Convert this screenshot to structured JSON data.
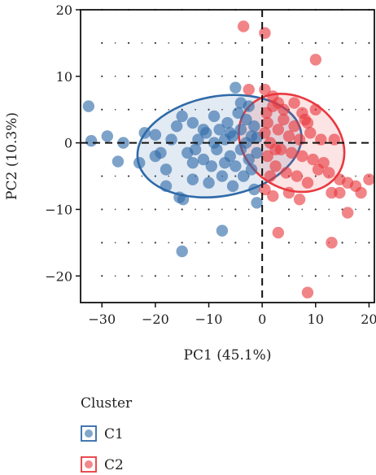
{
  "chart_data": {
    "type": "scatter",
    "xlabel": "PC1 (45.1%)",
    "ylabel": "PC2 (10.3%)",
    "xlim": [
      -34,
      21
    ],
    "ylim": [
      -24,
      20
    ],
    "x_ticks": [
      -30,
      -20,
      -10,
      0,
      10,
      20
    ],
    "y_ticks": [
      -20,
      -10,
      0,
      10,
      20
    ],
    "x_tick_labels": [
      "−30",
      "−20",
      "−10",
      "0",
      "10",
      "20"
    ],
    "y_tick_labels": [
      "−20",
      "−10",
      "0",
      "10",
      "20"
    ],
    "reference_lines": {
      "x": 0,
      "y": 0,
      "style": "dashed"
    },
    "grid": "dotted",
    "legend": {
      "title": "Cluster",
      "placement": "bottom-left",
      "entries": [
        "C1",
        "C2"
      ]
    },
    "series": [
      {
        "name": "C1",
        "color": "#2f6aa8",
        "ellipse": {
          "center": [
            -8,
            -0.5
          ],
          "semi_axes": [
            15.5,
            7.5
          ],
          "rotation_deg": 10
        },
        "points": [
          [
            -32.5,
            5.5
          ],
          [
            -32,
            0.3
          ],
          [
            -29,
            1
          ],
          [
            -27,
            -2.8
          ],
          [
            -26,
            0
          ],
          [
            -23,
            -3
          ],
          [
            -22,
            1.5
          ],
          [
            -20,
            1.2
          ],
          [
            -19,
            -1.5
          ],
          [
            -18,
            -4
          ],
          [
            -17,
            0.5
          ],
          [
            -16,
            2.5
          ],
          [
            -15.5,
            -8.2
          ],
          [
            -15,
            -16.3
          ],
          [
            -14.8,
            -8.5
          ],
          [
            -14,
            -1.5
          ],
          [
            -13,
            3
          ],
          [
            -13,
            -5.5
          ],
          [
            -12,
            0.5
          ],
          [
            -11,
            -2.5
          ],
          [
            -10.5,
            1.5
          ],
          [
            -10,
            -6
          ],
          [
            -9.5,
            -3.5
          ],
          [
            -9,
            4
          ],
          [
            -8.5,
            -1
          ],
          [
            -8,
            2
          ],
          [
            -7.5,
            -13.2
          ],
          [
            -7.5,
            -5
          ],
          [
            -7,
            0.5
          ],
          [
            -6.5,
            3
          ],
          [
            -6,
            -2
          ],
          [
            -5.5,
            -6.5
          ],
          [
            -5.5,
            1
          ],
          [
            -5,
            8.3
          ],
          [
            -5,
            -3.5
          ],
          [
            -4.5,
            4.5
          ],
          [
            -4,
            -1
          ],
          [
            -4,
            2
          ],
          [
            -3.5,
            -5
          ],
          [
            -3,
            0
          ],
          [
            -3,
            3.5
          ],
          [
            -2.5,
            -2.5
          ],
          [
            -2.5,
            5.5
          ],
          [
            -2,
            1
          ],
          [
            -2,
            -4
          ],
          [
            -1.5,
            -7
          ],
          [
            -1,
            -9
          ],
          [
            -1.5,
            2.5
          ],
          [
            -1,
            -1.5
          ],
          [
            -1,
            0.8
          ],
          [
            -18,
            -6.5
          ],
          [
            -20,
            -2
          ],
          [
            -12.5,
            -1
          ],
          [
            -9,
            0
          ],
          [
            -11,
            2
          ],
          [
            -6,
            1.5
          ],
          [
            -13,
            -3
          ],
          [
            -15,
            4
          ],
          [
            -4,
            6
          ],
          [
            -7,
            -3
          ]
        ]
      },
      {
        "name": "C2",
        "color": "#e8393e",
        "ellipse": {
          "center": [
            5.5,
            0
          ],
          "semi_axes": [
            10.5,
            6.8
          ],
          "rotation_deg": -35
        },
        "points": [
          [
            -3.5,
            17.5
          ],
          [
            0.5,
            16.5
          ],
          [
            10,
            12.5
          ],
          [
            -2.5,
            8
          ],
          [
            0.5,
            8
          ],
          [
            2,
            7
          ],
          [
            4,
            5
          ],
          [
            6,
            6
          ],
          [
            7.5,
            4.5
          ],
          [
            8.5,
            3
          ],
          [
            1,
            3
          ],
          [
            3,
            2
          ],
          [
            5,
            1
          ],
          [
            7,
            0.5
          ],
          [
            9,
            1.5
          ],
          [
            11,
            0.5
          ],
          [
            13.5,
            0.5
          ],
          [
            1.5,
            0
          ],
          [
            3.5,
            -1
          ],
          [
            5.5,
            -1.5
          ],
          [
            7.5,
            -2
          ],
          [
            9.5,
            -2.5
          ],
          [
            11.5,
            -3
          ],
          [
            1,
            -2
          ],
          [
            2.5,
            -3.5
          ],
          [
            4.5,
            -4.5
          ],
          [
            6.5,
            -5
          ],
          [
            8.5,
            -6
          ],
          [
            10.5,
            -4
          ],
          [
            12.5,
            -4.5
          ],
          [
            14.5,
            -5.5
          ],
          [
            16,
            -6
          ],
          [
            17.5,
            -6.5
          ],
          [
            18.5,
            -7.5
          ],
          [
            20,
            -5.5
          ],
          [
            13,
            -7.5
          ],
          [
            14.5,
            -7.5
          ],
          [
            16,
            -10.5
          ],
          [
            13,
            -15
          ],
          [
            8.5,
            -22.5
          ],
          [
            3,
            -13.5
          ],
          [
            2,
            -8
          ],
          [
            0.5,
            -7
          ],
          [
            5,
            -7.5
          ],
          [
            7,
            -8.5
          ],
          [
            2,
            5.5
          ],
          [
            4,
            3.5
          ],
          [
            0.5,
            1.5
          ],
          [
            2.5,
            -1
          ],
          [
            6,
            2.5
          ],
          [
            3,
            6
          ],
          [
            8,
            3.5
          ],
          [
            0.8,
            4.5
          ],
          [
            1.5,
            -5
          ],
          [
            10,
            5
          ]
        ]
      }
    ]
  }
}
